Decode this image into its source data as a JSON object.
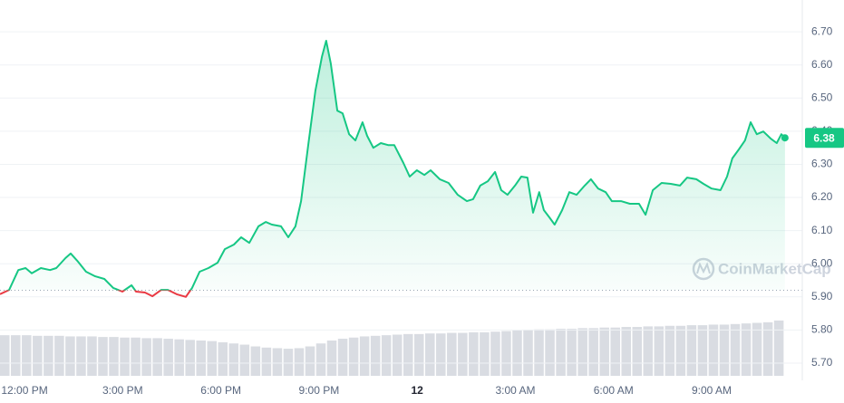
{
  "chart_data": {
    "type": "line",
    "watermark": "CoinMarketCap",
    "series": [
      {
        "color": "#16c784",
        "x": [
          -0.75,
          -0.47,
          -0.19,
          0.03,
          0.22,
          0.5,
          0.78,
          0.97,
          1.25,
          1.41,
          1.61,
          1.88,
          2.16,
          2.44,
          2.71,
          2.99,
          3.27,
          3.41,
          3.68,
          3.91,
          4.18,
          4.38,
          4.65,
          4.93,
          5.12,
          5.35,
          5.62,
          5.9,
          6.12,
          6.4,
          6.62,
          6.87,
          7.15,
          7.37,
          7.56,
          7.84,
          8.06,
          8.28,
          8.45,
          8.67,
          8.89,
          9.09,
          9.22,
          9.36,
          9.56,
          9.72,
          9.92,
          10.11,
          10.33,
          10.47,
          10.66,
          10.89,
          11.11,
          11.3,
          11.58,
          11.77,
          11.99,
          12.22,
          12.41,
          12.69,
          12.96,
          13.24,
          13.52,
          13.71,
          13.93,
          14.16,
          14.38,
          14.57,
          14.76,
          14.99,
          15.18,
          15.37,
          15.54,
          15.73,
          15.87,
          16.04,
          16.2,
          16.43,
          16.65,
          16.87,
          17.12,
          17.31,
          17.53,
          17.76,
          17.95,
          18.23,
          18.5,
          18.78,
          18.98,
          19.2,
          19.47,
          19.75,
          20.03,
          20.25,
          20.53,
          20.75,
          21.0,
          21.27,
          21.47,
          21.63,
          21.83,
          22.02,
          22.19,
          22.38,
          22.58,
          22.8,
          22.99,
          23.13,
          23.24
        ],
        "values": [
          5.908,
          5.921,
          5.981,
          5.987,
          5.971,
          5.987,
          5.981,
          5.987,
          6.017,
          6.031,
          6.009,
          5.976,
          5.962,
          5.954,
          5.927,
          5.916,
          5.935,
          5.916,
          5.913,
          5.902,
          5.921,
          5.921,
          5.908,
          5.9,
          5.927,
          5.976,
          5.987,
          6.003,
          6.044,
          6.058,
          6.08,
          6.063,
          6.113,
          6.126,
          6.118,
          6.113,
          6.08,
          6.113,
          6.189,
          6.358,
          6.522,
          6.626,
          6.673,
          6.604,
          6.462,
          6.454,
          6.391,
          6.372,
          6.427,
          6.386,
          6.35,
          6.364,
          6.358,
          6.358,
          6.304,
          6.263,
          6.282,
          6.268,
          6.282,
          6.255,
          6.244,
          6.208,
          6.189,
          6.195,
          6.236,
          6.249,
          6.277,
          6.222,
          6.208,
          6.236,
          6.263,
          6.26,
          6.154,
          6.216,
          6.162,
          6.14,
          6.118,
          6.162,
          6.216,
          6.208,
          6.236,
          6.255,
          6.227,
          6.216,
          6.189,
          6.189,
          6.181,
          6.181,
          6.148,
          6.222,
          6.244,
          6.241,
          6.236,
          6.26,
          6.255,
          6.241,
          6.227,
          6.222,
          6.263,
          6.318,
          6.345,
          6.372,
          6.427,
          6.391,
          6.399,
          6.378,
          6.364,
          6.391,
          6.38
        ]
      }
    ],
    "down_color": "#ea3943",
    "baseline": 5.92,
    "volume": [
      69,
      69,
      69,
      68,
      68,
      68,
      67,
      67,
      67,
      66,
      66,
      65,
      65,
      64,
      64,
      63,
      62,
      61,
      60,
      59,
      57,
      55,
      53,
      50,
      48,
      47,
      46,
      47,
      50,
      55,
      60,
      63,
      65,
      67,
      68,
      69,
      70,
      71,
      71,
      72,
      72,
      73,
      73,
      74,
      74,
      75,
      76,
      77,
      78,
      79,
      79,
      80,
      80,
      81,
      81,
      82,
      82,
      83,
      83,
      84,
      84,
      85,
      85,
      86,
      86,
      87,
      87,
      88,
      89,
      90,
      91,
      94
    ],
    "volume_color": "#d9dce2",
    "xlim": [
      -0.75,
      23.77
    ],
    "xticks": [
      {
        "value": 0,
        "label": "12:00 PM"
      },
      {
        "value": 3,
        "label": "3:00 PM"
      },
      {
        "value": 6,
        "label": "6:00 PM"
      },
      {
        "value": 9,
        "label": "9:00 PM"
      },
      {
        "value": 12,
        "label": "12"
      },
      {
        "value": 15,
        "label": "3:00 AM"
      },
      {
        "value": 18,
        "label": "6:00 AM"
      },
      {
        "value": 21,
        "label": "9:00 AM"
      }
    ],
    "ylim": [
      5.648,
      6.796
    ],
    "yticks": [
      {
        "value": 5.7,
        "label": "5.70"
      },
      {
        "value": 5.8,
        "label": "5.80"
      },
      {
        "value": 5.9,
        "label": "5.90"
      },
      {
        "value": 6.0,
        "label": "6.00"
      },
      {
        "value": 6.1,
        "label": "6.10"
      },
      {
        "value": 6.2,
        "label": "6.20"
      },
      {
        "value": 6.3,
        "label": "6.30"
      },
      {
        "value": 6.4,
        "label": "6.40"
      },
      {
        "value": 6.5,
        "label": "6.50"
      },
      {
        "value": 6.6,
        "label": "6.60"
      },
      {
        "value": 6.7,
        "label": "6.70"
      }
    ],
    "grid": true
  }
}
